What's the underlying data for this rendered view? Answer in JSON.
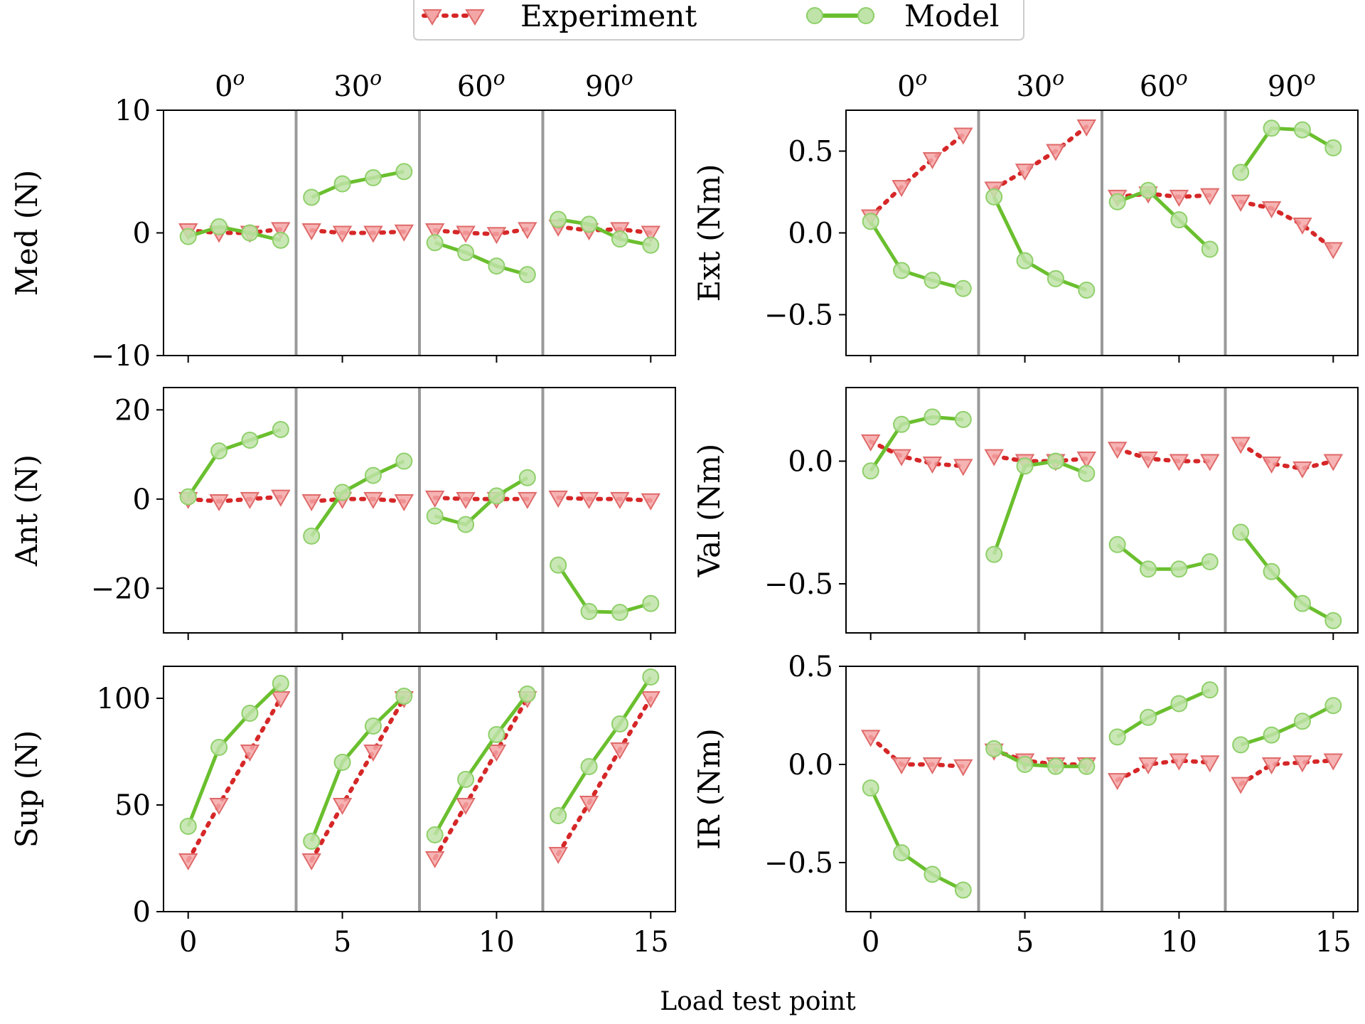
{
  "legend": {
    "experiment_label": "Experiment",
    "model_label": "Model"
  },
  "xlabel": "Load test point",
  "angle_labels": [
    "0",
    "30",
    "60",
    "90"
  ],
  "angle_superscript": "o",
  "colors": {
    "experiment_line": "#d62728",
    "experiment_marker_fill": "#f4a6a6",
    "experiment_marker_edge": "#e06a6a",
    "model_line": "#6abf2e",
    "model_marker_fill": "#bfe3a8",
    "model_marker_edge": "#8fd06a",
    "separator": "#999999"
  },
  "chart_data": [
    {
      "id": "med",
      "type": "line",
      "ylabel": "Med (N)",
      "ylim": [
        -10,
        10
      ],
      "yticks": [
        -10,
        0,
        10
      ],
      "xlim": [
        -0.8,
        15.8
      ],
      "xticks": [
        0,
        5,
        10,
        15
      ],
      "separators": [
        3.5,
        7.5,
        11.5
      ],
      "x": [
        0,
        1,
        2,
        3,
        4,
        5,
        6,
        7,
        8,
        9,
        10,
        11,
        12,
        13,
        14,
        15
      ],
      "series": [
        {
          "name": "Experiment",
          "values": [
            0.2,
            0,
            0,
            0.3,
            0.2,
            0,
            0,
            0.1,
            0.2,
            0,
            -0.1,
            0.3,
            0.5,
            0.2,
            0.3,
            0
          ]
        },
        {
          "name": "Model",
          "values": [
            -0.3,
            0.5,
            0,
            -0.6,
            2.9,
            4.0,
            4.5,
            5.0,
            -0.8,
            -1.6,
            -2.7,
            -3.4,
            1.1,
            0.7,
            -0.5,
            -1.0
          ]
        }
      ]
    },
    {
      "id": "ext",
      "type": "line",
      "ylabel": "Ext (Nm)",
      "ylim": [
        -0.75,
        0.75
      ],
      "yticks": [
        -0.5,
        0.0,
        0.5
      ],
      "xlim": [
        -0.8,
        15.8
      ],
      "xticks": [
        0,
        5,
        10,
        15
      ],
      "separators": [
        3.5,
        7.5,
        11.5
      ],
      "x": [
        0,
        1,
        2,
        3,
        4,
        5,
        6,
        7,
        8,
        9,
        10,
        11,
        12,
        13,
        14,
        15
      ],
      "series": [
        {
          "name": "Experiment",
          "values": [
            0.1,
            0.28,
            0.45,
            0.6,
            0.27,
            0.38,
            0.5,
            0.65,
            0.22,
            0.24,
            0.22,
            0.23,
            0.19,
            0.15,
            0.05,
            -0.1
          ]
        },
        {
          "name": "Model",
          "values": [
            0.07,
            -0.23,
            -0.29,
            -0.34,
            0.22,
            -0.17,
            -0.28,
            -0.35,
            0.19,
            0.26,
            0.08,
            -0.1,
            0.37,
            0.64,
            0.63,
            0.52
          ]
        }
      ]
    },
    {
      "id": "ant",
      "type": "line",
      "ylabel": "Ant (N)",
      "ylim": [
        -30,
        25
      ],
      "yticks": [
        -20,
        0,
        20
      ],
      "xlim": [
        -0.8,
        15.8
      ],
      "xticks": [
        0,
        5,
        10,
        15
      ],
      "separators": [
        3.5,
        7.5,
        11.5
      ],
      "x": [
        0,
        1,
        2,
        3,
        4,
        5,
        6,
        7,
        8,
        9,
        10,
        11,
        12,
        13,
        14,
        15
      ],
      "series": [
        {
          "name": "Experiment",
          "values": [
            0,
            -0.5,
            0,
            0.5,
            -0.5,
            0,
            0,
            -0.5,
            0.3,
            0,
            0,
            0,
            0.3,
            0,
            0,
            -0.3
          ]
        },
        {
          "name": "Model",
          "values": [
            0.5,
            10.8,
            13.2,
            15.6,
            -8.3,
            1.5,
            5.3,
            8.5,
            -3.8,
            -5.7,
            0.7,
            4.8,
            -14.8,
            -25.2,
            -25.4,
            -23.4
          ]
        }
      ]
    },
    {
      "id": "val",
      "type": "line",
      "ylabel": "Val (Nm)",
      "ylim": [
        -0.7,
        0.3
      ],
      "yticks": [
        -0.5,
        0.0
      ],
      "xlim": [
        -0.8,
        15.8
      ],
      "xticks": [
        0,
        5,
        10,
        15
      ],
      "separators": [
        3.5,
        7.5,
        11.5
      ],
      "x": [
        0,
        1,
        2,
        3,
        4,
        5,
        6,
        7,
        8,
        9,
        10,
        11,
        12,
        13,
        14,
        15
      ],
      "series": [
        {
          "name": "Experiment",
          "values": [
            0.08,
            0.02,
            -0.01,
            -0.02,
            0.02,
            0,
            0,
            0.01,
            0.05,
            0.01,
            0,
            0,
            0.07,
            -0.01,
            -0.03,
            0
          ]
        },
        {
          "name": "Model",
          "values": [
            -0.04,
            0.15,
            0.18,
            0.17,
            -0.38,
            -0.02,
            0,
            -0.05,
            -0.34,
            -0.44,
            -0.44,
            -0.41,
            -0.29,
            -0.45,
            -0.58,
            -0.65
          ]
        }
      ]
    },
    {
      "id": "sup",
      "type": "line",
      "ylabel": "Sup (N)",
      "ylim": [
        0,
        115
      ],
      "yticks": [
        0,
        50,
        100
      ],
      "xlim": [
        -0.8,
        15.8
      ],
      "xticks": [
        0,
        5,
        10,
        15
      ],
      "separators": [
        3.5,
        7.5,
        11.5
      ],
      "x": [
        0,
        1,
        2,
        3,
        4,
        5,
        6,
        7,
        8,
        9,
        10,
        11,
        12,
        13,
        14,
        15
      ],
      "series": [
        {
          "name": "Experiment",
          "values": [
            24,
            50,
            75,
            100,
            24,
            50,
            75,
            100,
            25,
            50,
            75,
            100,
            27,
            51,
            76,
            100
          ]
        },
        {
          "name": "Model",
          "values": [
            40,
            77,
            93,
            107,
            33,
            70,
            87,
            101,
            36,
            62,
            83,
            102,
            45,
            68,
            88,
            110
          ]
        }
      ]
    },
    {
      "id": "ir",
      "type": "line",
      "ylabel": "IR (Nm)",
      "ylim": [
        -0.75,
        0.5
      ],
      "yticks": [
        -0.5,
        0.0,
        0.5
      ],
      "xlim": [
        -0.8,
        15.8
      ],
      "xticks": [
        0,
        5,
        10,
        15
      ],
      "separators": [
        3.5,
        7.5,
        11.5
      ],
      "x": [
        0,
        1,
        2,
        3,
        4,
        5,
        6,
        7,
        8,
        9,
        10,
        11,
        12,
        13,
        14,
        15
      ],
      "series": [
        {
          "name": "Experiment",
          "values": [
            0.14,
            0,
            0,
            -0.01,
            0.07,
            0.02,
            0,
            0,
            -0.08,
            0,
            0.02,
            0.01,
            -0.1,
            0,
            0.01,
            0.02
          ]
        },
        {
          "name": "Model",
          "values": [
            -0.12,
            -0.45,
            -0.56,
            -0.64,
            0.08,
            0,
            -0.01,
            -0.01,
            0.14,
            0.24,
            0.31,
            0.38,
            0.1,
            0.15,
            0.22,
            0.3
          ]
        }
      ]
    }
  ]
}
